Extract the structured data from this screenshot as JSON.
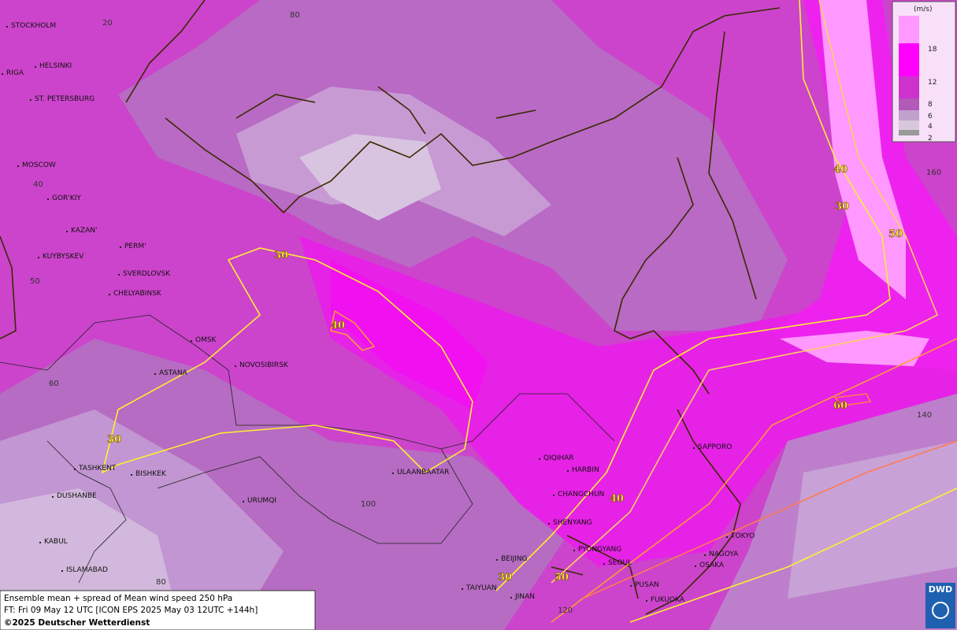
{
  "legend": {
    "unit": "(m/s)",
    "levels": [
      "18",
      "12",
      "8",
      "6",
      "4",
      "2"
    ]
  },
  "cities": [
    "STOCKHOLM",
    "HELSINKI",
    "RIGA",
    "ST. PETERSBURG",
    "MOSCOW",
    "GOR'KIY",
    "KAZAN'",
    "PERM'",
    "KUYBYSKEV",
    "SVERDLOVSK",
    "CHELYABINSK",
    "OMSK",
    "ASTANA",
    "NOVOSIBIRSK",
    "TASHKENT",
    "BISHKEK",
    "DUSHANBE",
    "URUMQI",
    "KABUL",
    "ISLAMABAD",
    "ULAANBAATAR",
    "QIQIHAR",
    "HARBIN",
    "CHANGCHUN",
    "SHENYANG",
    "BEIJING",
    "PYONGYANG",
    "SEOUL",
    "TAIYUAN",
    "JINAN",
    "PUSAN",
    "FUKUOKA",
    "SAPPORO",
    "TOKYO",
    "NAGOYA",
    "OSAKA"
  ],
  "grid_labels": [
    "20",
    "80",
    "40",
    "50",
    "60",
    "100",
    "80",
    "120",
    "140",
    "160"
  ],
  "contour_labels": [
    "30",
    "40",
    "30",
    "40",
    "30",
    "50",
    "60",
    "40",
    "30",
    "50"
  ],
  "footer": {
    "line1": "Ensemble mean + spread of Mean wind speed 250 hPa",
    "line2": "FT: Fri 09 May 12 UTC [ICON EPS 2025 May 03 12UTC +144h]",
    "copyright": "©2025 Deutscher Wetterdienst"
  },
  "logo": "DWD"
}
